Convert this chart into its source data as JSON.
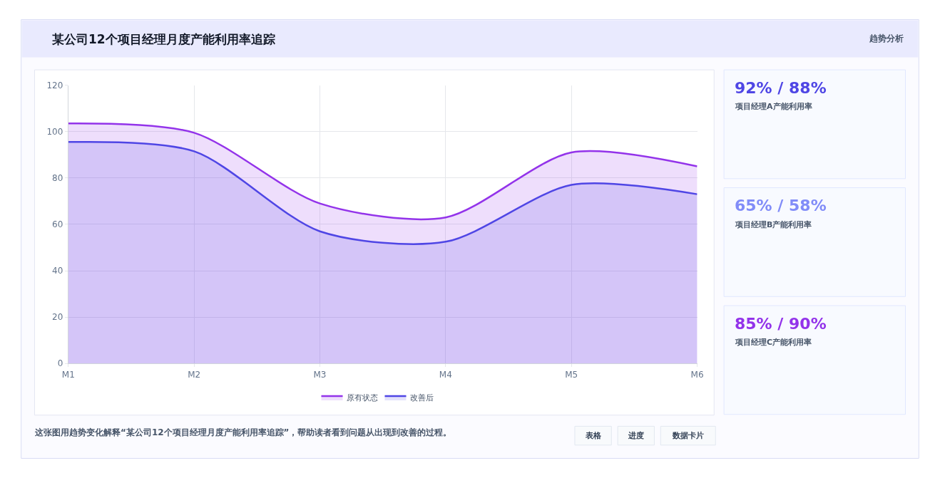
{
  "chart_data": [
    {
      "type": "area",
      "title": "某公司12个项目经理月度产能利用率追踪",
      "categories": [
        "M1",
        "M2",
        "M3",
        "M4",
        "M5",
        "M6"
      ],
      "series": [
        {
          "name": "原有状态",
          "color": "#9333ea",
          "values": [
            103.5,
            99.5,
            69,
            63,
            91,
            85
          ]
        },
        {
          "name": "改善后",
          "color": "#4f46e5",
          "values": [
            95.5,
            91.5,
            57,
            52.5,
            77,
            73
          ]
        }
      ],
      "ylim": [
        0,
        120
      ],
      "yticks": [
        0,
        20,
        40,
        60,
        80,
        100,
        120
      ],
      "grid": true,
      "legend": "bottom",
      "line_style": "solid",
      "annotations": [
        "这张图用趋势变化解释“某公司12个项目经理月度产能利用率追踪”，帮助读者看到问题从出现到改善的过程。",
        "表格",
        "进度",
        "数据卡片"
      ]
    },
    {
      "type": "other",
      "title": "趋势分析",
      "annotations": [
        "92% / 88%",
        "项目经理A产能利用率",
        "65% / 58%",
        "项目经理B产能利用率",
        "85% / 90%",
        "项目经理C产能利用率"
      ]
    }
  ]
}
